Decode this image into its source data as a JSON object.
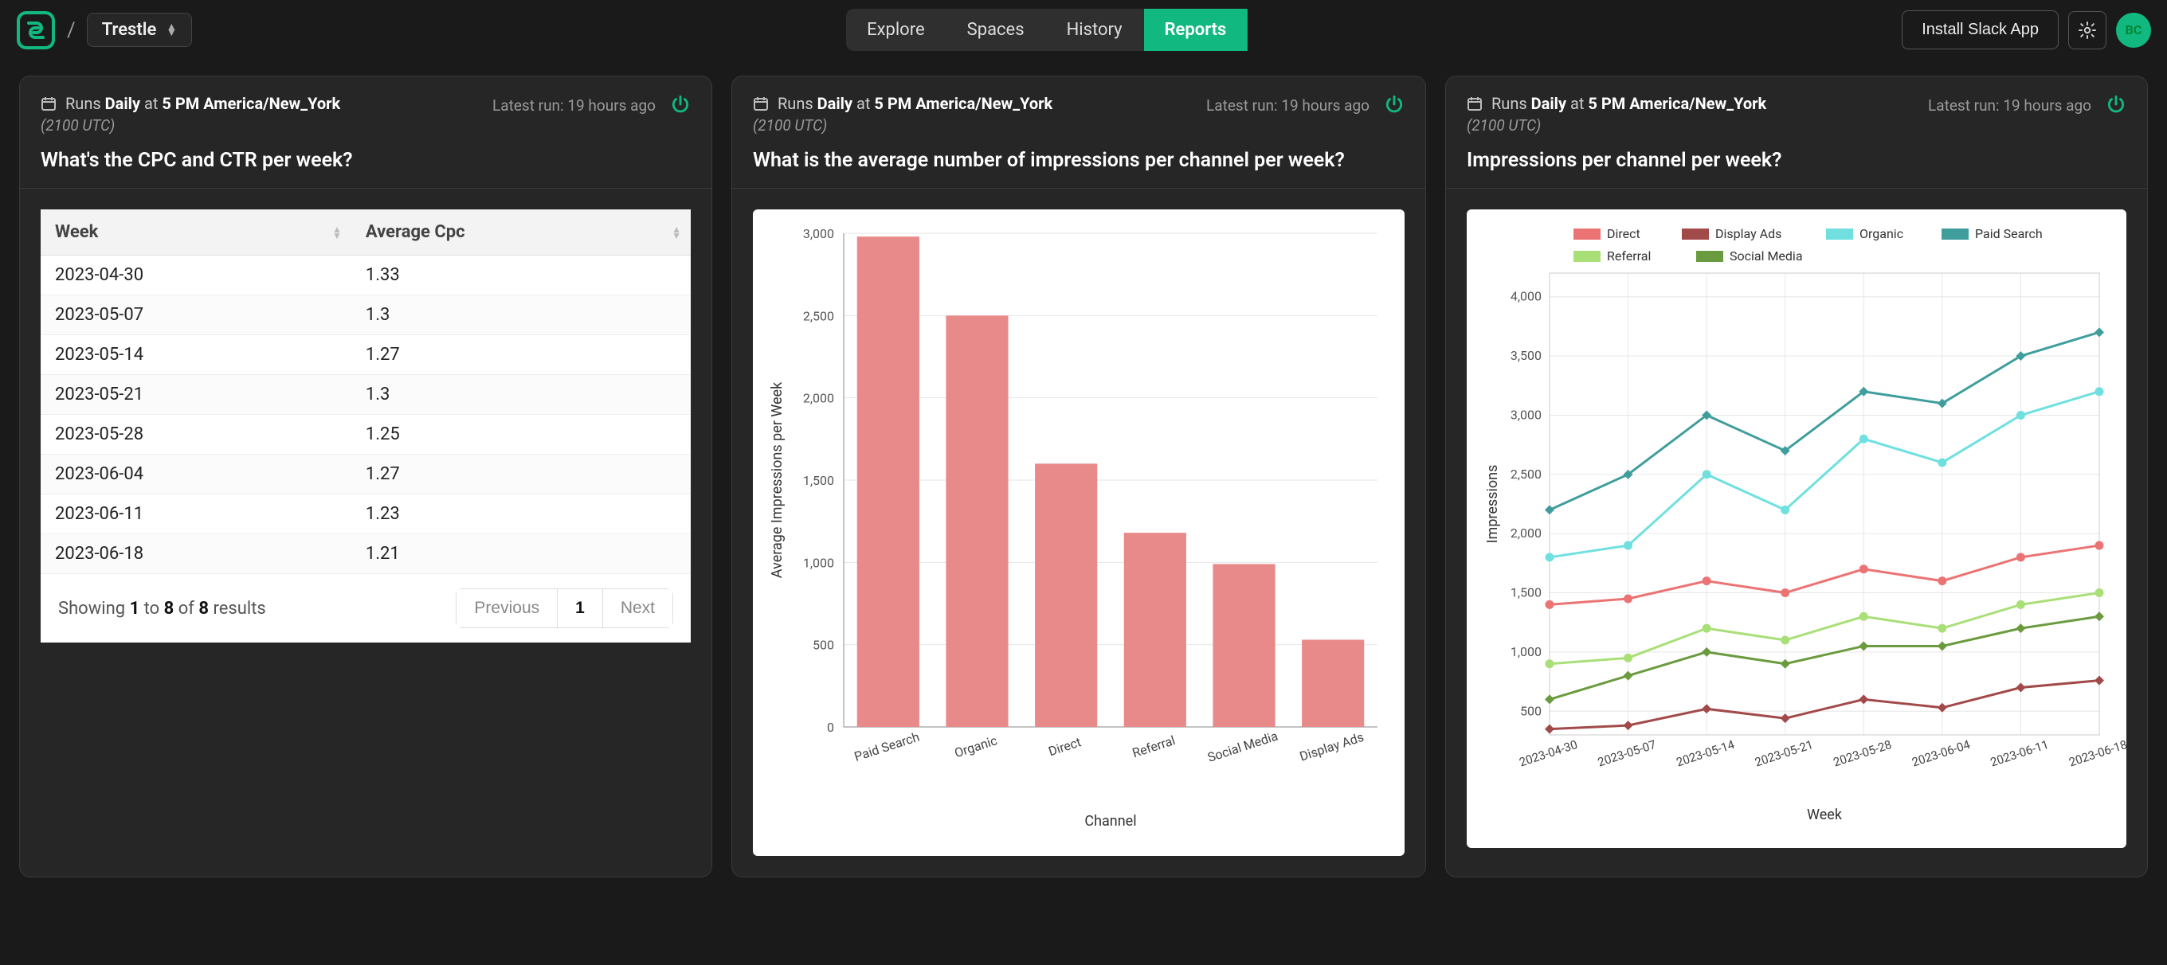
{
  "header": {
    "workspace": "Trestle",
    "tabs": [
      "Explore",
      "Spaces",
      "History",
      "Reports"
    ],
    "active_tab": "Reports",
    "install_button": "Install Slack App",
    "avatar_initials": "BC",
    "brand_color": "#11b981"
  },
  "cards": [
    {
      "schedule": {
        "prefix": "Runs",
        "freq": "Daily",
        "at": "at",
        "time": "5 PM America/New_York",
        "utc": "(2100 UTC)"
      },
      "latest_run": "Latest run: 19 hours ago",
      "title": "What's the CPC and CTR per week?",
      "table": {
        "columns": [
          "Week",
          "Average Cpc"
        ],
        "rows": [
          [
            "2023-04-30",
            "1.33"
          ],
          [
            "2023-05-07",
            "1.3"
          ],
          [
            "2023-05-14",
            "1.27"
          ],
          [
            "2023-05-21",
            "1.3"
          ],
          [
            "2023-05-28",
            "1.25"
          ],
          [
            "2023-06-04",
            "1.27"
          ],
          [
            "2023-06-11",
            "1.23"
          ],
          [
            "2023-06-18",
            "1.21"
          ]
        ],
        "summary_tpl": "Showing <b>{from}</b> to <b>{to}</b> of <b>{total}</b> results",
        "from": 1,
        "to": 8,
        "total": 8,
        "prev": "Previous",
        "page": "1",
        "next": "Next",
        "header_bg": "#f3f3f3"
      }
    },
    {
      "schedule": {
        "prefix": "Runs",
        "freq": "Daily",
        "at": "at",
        "time": "5 PM America/New_York",
        "utc": "(2100 UTC)"
      },
      "latest_run": "Latest run: 19 hours ago",
      "title": "What is the average number of impressions per channel per week?",
      "bar_chart": {
        "type": "bar",
        "categories": [
          "Paid Search",
          "Organic",
          "Direct",
          "Referral",
          "Social Media",
          "Display Ads"
        ],
        "values": [
          2980,
          2500,
          1600,
          1180,
          990,
          530
        ],
        "bar_color": "#e98a8a",
        "yticks": [
          0,
          500,
          1000,
          1500,
          2000,
          2500,
          3000
        ],
        "ylim": [
          0,
          3000
        ],
        "ylabel": "Average Impressions per Week",
        "xlabel": "Channel",
        "grid_color": "#e6e6e6",
        "axis_color": "#888",
        "label_fontsize": 16,
        "tick_fontsize": 16,
        "bg": "#ffffff"
      }
    },
    {
      "schedule": {
        "prefix": "Runs",
        "freq": "Daily",
        "at": "at",
        "time": "5 PM America/New_York",
        "utc": "(2100 UTC)"
      },
      "latest_run": "Latest run: 19 hours ago",
      "title": "Impressions per channel per week?",
      "line_chart": {
        "type": "line",
        "x_labels": [
          "2023-04-30",
          "2023-05-07",
          "2023-05-14",
          "2023-05-21",
          "2023-05-28",
          "2023-06-04",
          "2023-06-11",
          "2023-06-18"
        ],
        "yticks": [
          500,
          1000,
          1500,
          2000,
          2500,
          3000,
          3500,
          4000
        ],
        "ylim": [
          300,
          4200
        ],
        "xlabel": "Week",
        "ylabel": "Impressions",
        "grid_color": "#e6e6e6",
        "axis_color": "#888",
        "series": [
          {
            "name": "Direct",
            "color": "#ec7373",
            "marker": "circle",
            "values": [
              1400,
              1450,
              1600,
              1500,
              1700,
              1600,
              1800,
              1900
            ]
          },
          {
            "name": "Display Ads",
            "color": "#a24a4a",
            "marker": "diamond",
            "values": [
              350,
              380,
              520,
              440,
              600,
              530,
              700,
              760
            ]
          },
          {
            "name": "Organic",
            "color": "#6fe0df",
            "marker": "circle",
            "values": [
              1800,
              1900,
              2500,
              2200,
              2800,
              2600,
              3000,
              3200
            ]
          },
          {
            "name": "Paid Search",
            "color": "#3f9e9c",
            "marker": "diamond",
            "values": [
              2200,
              2500,
              3000,
              2700,
              3200,
              3100,
              3500,
              3700
            ]
          },
          {
            "name": "Referral",
            "color": "#a9df77",
            "marker": "circle",
            "values": [
              900,
              950,
              1200,
              1100,
              1300,
              1200,
              1400,
              1500
            ]
          },
          {
            "name": "Social Media",
            "color": "#6b9b3f",
            "marker": "diamond",
            "values": [
              600,
              800,
              1000,
              900,
              1050,
              1050,
              1200,
              1300
            ]
          }
        ],
        "legend_rows": [
          [
            "Direct",
            "Display Ads",
            "Organic",
            "Paid Search"
          ],
          [
            "Referral",
            "Social Media"
          ]
        ],
        "bg": "#ffffff"
      }
    }
  ]
}
